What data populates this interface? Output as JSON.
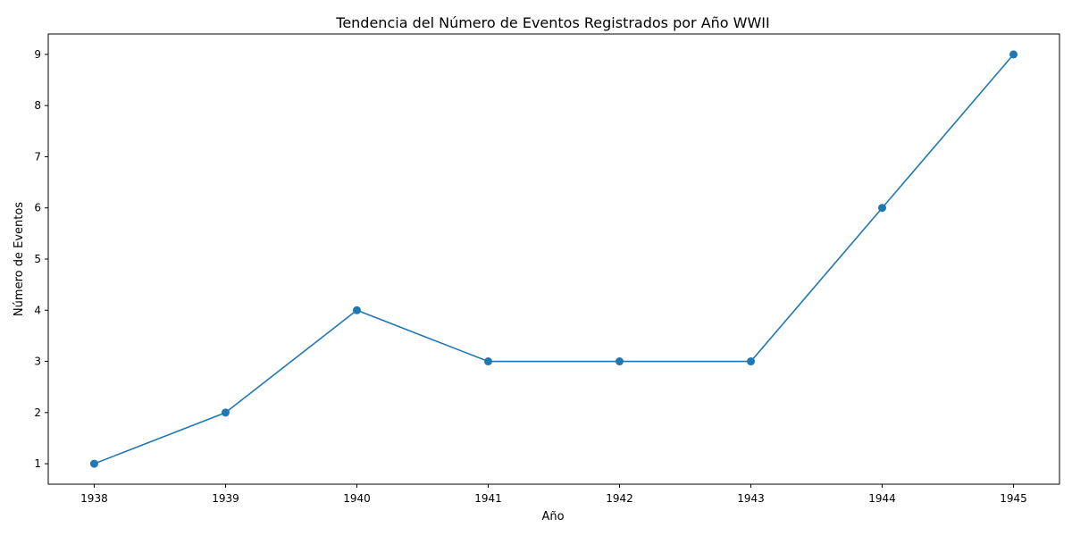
{
  "chart_data": {
    "type": "line",
    "title": "Tendencia del Número de Eventos Registrados por Año WWII",
    "xlabel": "Año",
    "ylabel": "Número de Eventos",
    "x": [
      1938,
      1939,
      1940,
      1941,
      1942,
      1943,
      1944,
      1945
    ],
    "series": [
      {
        "values": [
          1,
          2,
          4,
          3,
          3,
          3,
          6,
          9
        ],
        "color": "#1f77b4",
        "marker": "circle"
      }
    ],
    "xticks": [
      "1938",
      "1939",
      "1940",
      "1941",
      "1942",
      "1943",
      "1944",
      "1945"
    ],
    "yticks": [
      "1",
      "2",
      "3",
      "4",
      "5",
      "6",
      "7",
      "8",
      "9"
    ],
    "xlim": [
      1937.65,
      1945.35
    ],
    "ylim": [
      0.6,
      9.4
    ],
    "grid": false,
    "legend": "none"
  }
}
